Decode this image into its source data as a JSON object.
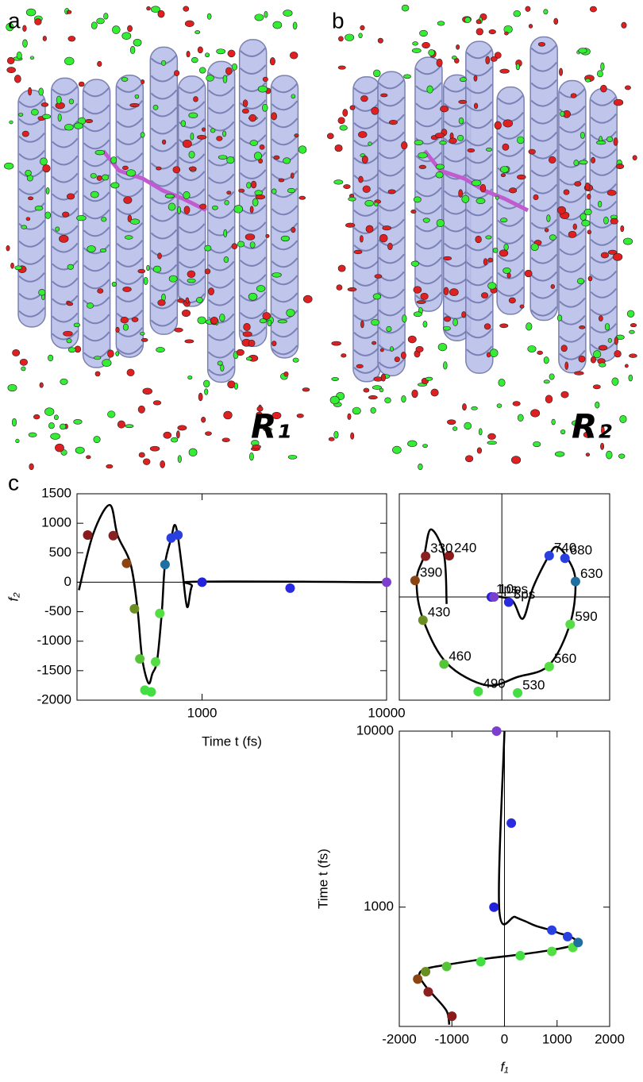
{
  "figure": {
    "panel_labels": [
      "a",
      "b",
      "c"
    ],
    "structure_labels": [
      "R₁",
      "R₂"
    ]
  },
  "chart_data": [
    {
      "type": "line",
      "xlabel": "Time t (fs)",
      "ylabel": "f₂",
      "xscale": "log",
      "xlim": [
        210,
        10000
      ],
      "xticks": [
        1000,
        10000
      ],
      "ylim": [
        -2000,
        1500
      ],
      "yticks": [
        -2000,
        -1500,
        -1000,
        -500,
        0,
        500,
        1000,
        1500
      ],
      "zero_lines": [
        "y"
      ],
      "line_color": "#000000",
      "curve": {
        "x": [
          215,
          257,
          316,
          349,
          409,
          446,
          473,
          512,
          538,
          571,
          605,
          630,
          681,
          709,
          737,
          782,
          830,
          880,
          980,
          10000
        ],
        "y": [
          -135,
          820,
          1310,
          790,
          320,
          -430,
          -1280,
          -1710,
          -1550,
          -1320,
          -510,
          310,
          750,
          970,
          810,
          200,
          -420,
          -70,
          10,
          0
        ]
      },
      "points": {
        "x": [
          240,
          330,
          390,
          430,
          460,
          490,
          530,
          560,
          590,
          630,
          680,
          740,
          1000,
          3000,
          10000
        ],
        "y": [
          800,
          790,
          320,
          -450,
          -1300,
          -1830,
          -1860,
          -1350,
          -530,
          300,
          750,
          800,
          0,
          -100,
          0
        ],
        "colors": [
          "#8b1a1a",
          "#8b2020",
          "#8b4513",
          "#6b8e23",
          "#55c437",
          "#44dd44",
          "#44dd44",
          "#55dd44",
          "#55dd44",
          "#1f6fa0",
          "#2a3fe0",
          "#2a3fe0",
          "#2222dd",
          "#2a2ae0",
          "#7b3fd0"
        ]
      }
    },
    {
      "type": "phase",
      "xlim": [
        -1950,
        2050
      ],
      "ylim": [
        -2000,
        2000
      ],
      "zero_lines": [
        "x",
        "y"
      ],
      "line_color": "#000000",
      "curve": {
        "x": [
          -1050,
          -1100,
          -1350,
          -1480,
          -1620,
          -1500,
          -1050,
          -300,
          300,
          900,
          1300,
          1400,
          1250,
          1050,
          900,
          600,
          400,
          200,
          -100,
          0
        ],
        "y": [
          -135,
          820,
          1310,
          790,
          320,
          -430,
          -1280,
          -1710,
          -1550,
          -1320,
          -510,
          310,
          750,
          970,
          810,
          200,
          -420,
          -70,
          10,
          0
        ]
      },
      "points": {
        "x": [
          -1000,
          -1450,
          -1650,
          -1500,
          -1100,
          -450,
          300,
          900,
          1300,
          1400,
          1200,
          900,
          -200,
          130,
          -150
        ],
        "y": [
          800,
          790,
          320,
          -450,
          -1300,
          -1830,
          -1860,
          -1350,
          -530,
          300,
          750,
          800,
          0,
          -100,
          0
        ],
        "labels": [
          "240",
          "330",
          "390",
          "430",
          "460",
          "490",
          "530",
          "560",
          "590",
          "630",
          "680",
          "740",
          "1ps",
          "3ps",
          "10ps"
        ],
        "colors": [
          "#8b1a1a",
          "#8b2020",
          "#8b4513",
          "#6b8e23",
          "#55c437",
          "#44dd44",
          "#44dd44",
          "#55dd44",
          "#55dd44",
          "#1f6fa0",
          "#2a3fe0",
          "#2a3fe0",
          "#2222dd",
          "#2a2ae0",
          "#7b3fd0"
        ]
      }
    },
    {
      "type": "line",
      "xlabel": "f₁",
      "ylabel": "Time t (fs)",
      "yscale": "log",
      "xlim": [
        -2000,
        2000
      ],
      "xticks": [
        -2000,
        -1000,
        0,
        1000,
        2000
      ],
      "ylim": [
        210,
        10000
      ],
      "yticks": [
        1000,
        10000
      ],
      "zero_lines": [
        "x"
      ],
      "line_color": "#000000",
      "curve": {
        "x": [
          -1050,
          -1100,
          -1350,
          -1480,
          -1620,
          -1500,
          -1050,
          -300,
          300,
          900,
          1300,
          1400,
          1250,
          1050,
          900,
          600,
          400,
          200,
          -100,
          0
        ],
        "y": [
          215,
          257,
          316,
          349,
          409,
          446,
          473,
          512,
          538,
          571,
          605,
          630,
          681,
          709,
          737,
          782,
          830,
          880,
          980,
          10000
        ]
      },
      "points": {
        "x": [
          -1000,
          -1450,
          -1650,
          -1500,
          -1100,
          -450,
          300,
          900,
          1300,
          1400,
          1200,
          900,
          -200,
          130,
          -150
        ],
        "y": [
          240,
          330,
          390,
          430,
          460,
          490,
          530,
          560,
          590,
          630,
          680,
          740,
          1000,
          3000,
          10000
        ],
        "colors": [
          "#8b1a1a",
          "#8b2020",
          "#8b4513",
          "#6b8e23",
          "#55c437",
          "#44dd44",
          "#44dd44",
          "#55dd44",
          "#55dd44",
          "#1f6fa0",
          "#2a3fe0",
          "#2a3fe0",
          "#2222dd",
          "#2a2ae0",
          "#7b3fd0"
        ]
      }
    }
  ]
}
